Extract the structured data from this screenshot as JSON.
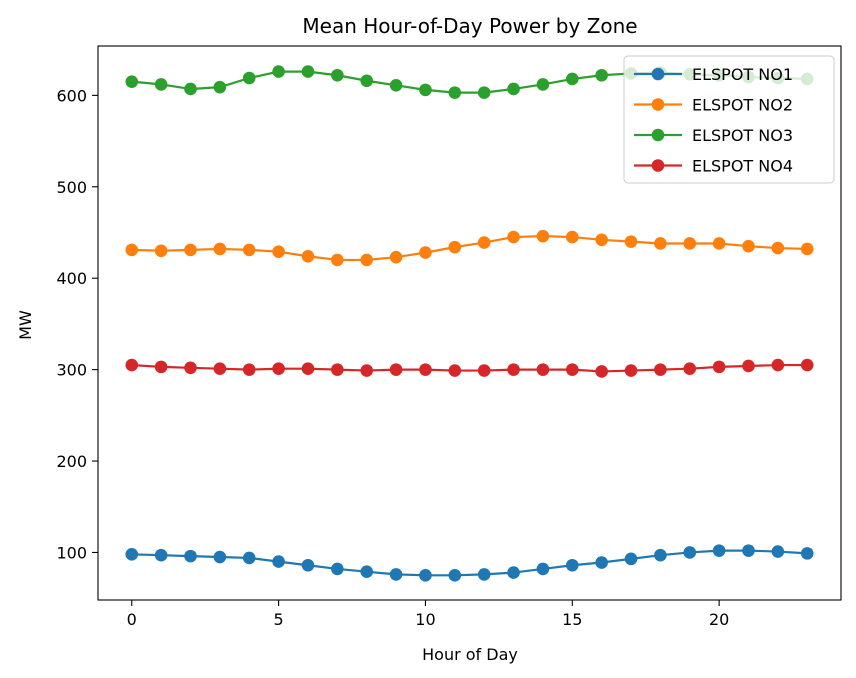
{
  "chart_data": {
    "type": "line",
    "title": "Mean Hour-of-Day Power by Zone",
    "xlabel": "Hour of Day",
    "ylabel": "MW",
    "xlim": [
      -1.15,
      24.15
    ],
    "ylim": [
      48,
      654
    ],
    "xticks": [
      0,
      5,
      10,
      15,
      20
    ],
    "yticks": [
      100,
      200,
      300,
      400,
      500,
      600
    ],
    "grid": false,
    "legend_position": "top-right",
    "x": [
      0,
      1,
      2,
      3,
      4,
      5,
      6,
      7,
      8,
      9,
      10,
      11,
      12,
      13,
      14,
      15,
      16,
      17,
      18,
      19,
      20,
      21,
      22,
      23
    ],
    "series": [
      {
        "name": "ELSPOT NO1",
        "color": "#1f77b4",
        "values": [
          98,
          97,
          96,
          95,
          94,
          90,
          86,
          82,
          79,
          76,
          75,
          75,
          76,
          78,
          82,
          86,
          89,
          93,
          97,
          100,
          102,
          102,
          101,
          99
        ]
      },
      {
        "name": "ELSPOT NO2",
        "color": "#ff7f0e",
        "values": [
          431,
          430,
          431,
          432,
          431,
          429,
          424,
          420,
          420,
          423,
          428,
          434,
          439,
          445,
          446,
          445,
          442,
          440,
          438,
          438,
          438,
          435,
          433,
          432
        ]
      },
      {
        "name": "ELSPOT NO3",
        "color": "#2ca02c",
        "values": [
          615,
          612,
          607,
          609,
          619,
          626,
          626,
          622,
          616,
          611,
          606,
          603,
          603,
          607,
          612,
          618,
          622,
          624,
          625,
          623,
          622,
          620,
          619,
          618
        ]
      },
      {
        "name": "ELSPOT NO4",
        "color": "#d62728",
        "values": [
          305,
          303,
          302,
          301,
          300,
          301,
          301,
          300,
          299,
          300,
          300,
          299,
          299,
          300,
          300,
          300,
          298,
          299,
          300,
          301,
          303,
          304,
          305,
          305
        ]
      }
    ]
  }
}
